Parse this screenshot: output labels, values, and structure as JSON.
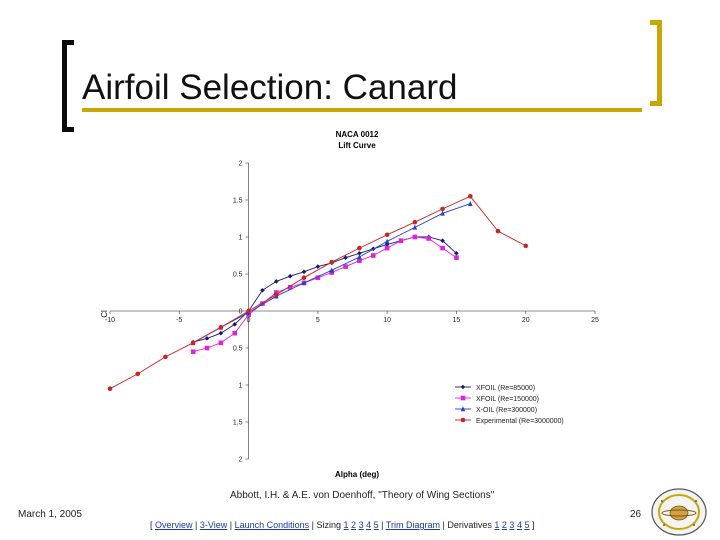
{
  "slide": {
    "title": "Airfoil Selection: Canard",
    "citation": "Abbott, I.H. & A.E. von Doenhoff, \"Theory of Wing Sections\"",
    "date": "March 1, 2005",
    "page_number": "26"
  },
  "nav": {
    "open": "[ ",
    "overview": "Overview",
    "sep": " | ",
    "three_view": "3-View",
    "launch": "Launch Conditions",
    "sizing_label": "Sizing ",
    "sizing_links": [
      "1",
      "2",
      "3",
      "4",
      "5"
    ],
    "trim": "Trim Diagram",
    "derivatives_label": "Derivatives ",
    "derivative_links": [
      "1",
      "2",
      "3",
      "4",
      "5"
    ],
    "close": " ]"
  },
  "colors": {
    "accent": "#c8a800",
    "bracket_dark": "#0b0b0b",
    "link": "#1a3a9a"
  },
  "icons": {
    "logo": "university-seal-icon"
  },
  "chart_data": {
    "type": "line",
    "title": "NACA 0012",
    "subtitle": "Lift Curve",
    "xlabel": "Alpha (deg)",
    "ylabel": "Cl",
    "xlim": [
      -10,
      25
    ],
    "ylim": [
      -2,
      2
    ],
    "x_ticks": [
      -10,
      -5,
      0,
      5,
      10,
      15,
      20,
      25
    ],
    "y_ticks": [
      2,
      1.5,
      1,
      0.5,
      0,
      -0.5,
      -1,
      -1.5,
      -2
    ],
    "x_tick_labels": [
      "-10",
      "-5",
      "0",
      "5",
      "10",
      "15",
      "20",
      "25"
    ],
    "y_tick_labels": [
      "2",
      "1.5",
      "1",
      "0.5",
      "0",
      "0.5",
      "1",
      "1.5",
      "2"
    ],
    "grid": false,
    "legend_position": "bottom-right",
    "series": [
      {
        "name": "XFOIL (Re=85000)",
        "color": "#1a1a6e",
        "marker": "diamond",
        "x": [
          -4,
          -3,
          -2,
          -1,
          0,
          1,
          2,
          3,
          4,
          5,
          6,
          7,
          8,
          9,
          10,
          11,
          12,
          13,
          14,
          15
        ],
        "y": [
          -0.42,
          -0.37,
          -0.3,
          -0.18,
          0,
          0.28,
          0.4,
          0.47,
          0.53,
          0.6,
          0.65,
          0.72,
          0.78,
          0.84,
          0.9,
          0.95,
          1.0,
          1.0,
          0.95,
          0.78
        ]
      },
      {
        "name": "XFOIL (Re=150000)",
        "color": "#e020e0",
        "marker": "square",
        "x": [
          -4,
          -3,
          -2,
          -1,
          0,
          1,
          2,
          3,
          4,
          5,
          6,
          7,
          8,
          9,
          10,
          11,
          12,
          13,
          14,
          15
        ],
        "y": [
          -0.55,
          -0.5,
          -0.43,
          -0.3,
          -0.05,
          0.1,
          0.25,
          0.32,
          0.38,
          0.45,
          0.52,
          0.6,
          0.68,
          0.75,
          0.85,
          0.95,
          1.0,
          0.98,
          0.85,
          0.72
        ]
      },
      {
        "name": "X-OIL (Re=300000)",
        "color": "#2040d0",
        "marker": "triangle",
        "x": [
          -4,
          -2,
          0,
          2,
          4,
          6,
          8,
          10,
          12,
          14,
          16
        ],
        "y": [
          -0.43,
          -0.22,
          -0.02,
          0.2,
          0.38,
          0.55,
          0.73,
          0.94,
          1.13,
          1.32,
          1.45
        ]
      },
      {
        "name": "Experimental (Re=3000000)",
        "color": "#cc2222",
        "marker": "circle",
        "x": [
          -10,
          -8,
          -6,
          -4,
          -2,
          0,
          2,
          4,
          6,
          8,
          10,
          12,
          14,
          16,
          18,
          20
        ],
        "y": [
          -1.05,
          -0.85,
          -0.62,
          -0.43,
          -0.22,
          0,
          0.22,
          0.45,
          0.66,
          0.85,
          1.03,
          1.2,
          1.38,
          1.55,
          1.08,
          0.88
        ]
      }
    ]
  }
}
